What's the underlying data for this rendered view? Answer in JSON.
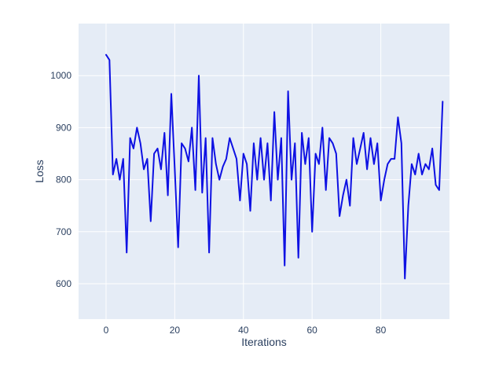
{
  "chart_data": {
    "type": "line",
    "title": "",
    "xlabel": "Iterations",
    "ylabel": "Loss",
    "x": [
      0,
      1,
      2,
      3,
      4,
      5,
      6,
      7,
      8,
      9,
      10,
      11,
      12,
      13,
      14,
      15,
      16,
      17,
      18,
      19,
      20,
      21,
      22,
      23,
      24,
      25,
      26,
      27,
      28,
      29,
      30,
      31,
      32,
      33,
      34,
      35,
      36,
      37,
      38,
      39,
      40,
      41,
      42,
      43,
      44,
      45,
      46,
      47,
      48,
      49,
      50,
      51,
      52,
      53,
      54,
      55,
      56,
      57,
      58,
      59,
      60,
      61,
      62,
      63,
      64,
      65,
      66,
      67,
      68,
      69,
      70,
      71,
      72,
      73,
      74,
      75,
      76,
      77,
      78,
      79,
      80,
      81,
      82,
      83,
      84,
      85,
      86,
      87,
      88,
      89,
      90,
      91,
      92,
      93,
      94,
      95,
      96,
      97,
      98
    ],
    "y": [
      1040,
      1030,
      810,
      840,
      800,
      840,
      660,
      880,
      860,
      900,
      870,
      820,
      840,
      720,
      850,
      860,
      820,
      890,
      770,
      965,
      820,
      670,
      870,
      860,
      835,
      900,
      780,
      1000,
      775,
      880,
      660,
      880,
      830,
      800,
      825,
      840,
      880,
      860,
      840,
      760,
      850,
      830,
      740,
      870,
      800,
      880,
      800,
      870,
      760,
      930,
      800,
      880,
      635,
      970,
      800,
      870,
      650,
      890,
      830,
      880,
      700,
      850,
      830,
      900,
      780,
      880,
      870,
      850,
      730,
      770,
      800,
      750,
      880,
      830,
      860,
      890,
      820,
      880,
      830,
      870,
      760,
      800,
      830,
      840,
      840,
      920,
      870,
      610,
      750,
      830,
      810,
      850,
      810,
      830,
      820,
      860,
      790,
      780,
      950
    ],
    "xlim": [
      -8,
      100
    ],
    "ylim": [
      532,
      1100
    ],
    "xticks": [
      0,
      20,
      40,
      60,
      80
    ],
    "yticks": [
      600,
      700,
      800,
      900,
      1000
    ],
    "grid": true,
    "legend": false,
    "line_color": "#0e11e3",
    "plot_bg": "#e5ecf6",
    "paper_bg": "#ffffff",
    "tick_color": "#2a3f5f",
    "grid_color": "#ffffff"
  }
}
